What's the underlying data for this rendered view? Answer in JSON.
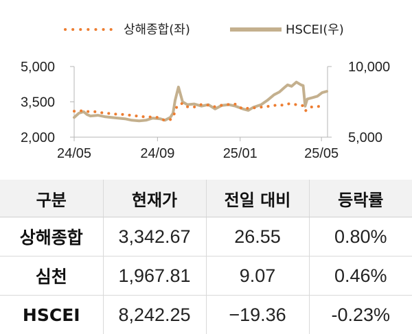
{
  "chart_data": {
    "type": "line",
    "legend": {
      "placement": "top-center",
      "items": [
        "상해종합(좌)",
        "HSCEI(우)"
      ]
    },
    "x_ticks": [
      "24/05",
      "24/09",
      "25/01",
      "25/05"
    ],
    "y_left": {
      "ticks": [
        "5,000",
        "3,500",
        "2,000"
      ],
      "range": [
        2000,
        5000
      ]
    },
    "y_right": {
      "ticks": [
        "10,000",
        "5,000"
      ],
      "range": [
        5000,
        10000
      ]
    },
    "grid": false,
    "series": [
      {
        "name": "상해종합(좌)",
        "axis": "left",
        "style": "dotted",
        "color": "#ed7d31",
        "x": [
          "2024-05-01",
          "2024-05-10",
          "2024-05-20",
          "2024-06-01",
          "2024-06-10",
          "2024-06-20",
          "2024-07-01",
          "2024-07-10",
          "2024-07-20",
          "2024-08-01",
          "2024-08-10",
          "2024-08-20",
          "2024-09-01",
          "2024-09-10",
          "2024-09-20",
          "2024-09-24",
          "2024-09-27",
          "2024-09-30",
          "2024-10-08",
          "2024-10-15",
          "2024-10-25",
          "2024-11-05",
          "2024-11-15",
          "2024-11-25",
          "2024-12-05",
          "2024-12-15",
          "2024-12-25",
          "2025-01-05",
          "2025-01-15",
          "2025-01-25",
          "2025-02-05",
          "2025-02-15",
          "2025-02-25",
          "2025-03-05",
          "2025-03-15",
          "2025-03-25",
          "2025-04-03",
          "2025-04-07",
          "2025-04-15",
          "2025-04-25",
          "2025-05-06"
        ],
        "y": [
          3105,
          3120,
          3090,
          3080,
          3040,
          3010,
          2980,
          2970,
          2940,
          2900,
          2870,
          2860,
          2840,
          2730,
          2750,
          2860,
          3090,
          3340,
          3440,
          3290,
          3280,
          3390,
          3360,
          3290,
          3360,
          3390,
          3400,
          3190,
          3240,
          3250,
          3290,
          3320,
          3370,
          3360,
          3420,
          3380,
          3340,
          3110,
          3280,
          3300,
          3342
        ]
      },
      {
        "name": "HSCEI(우)",
        "axis": "right",
        "style": "solid",
        "color": "#c4b08e",
        "x": [
          "2024-05-01",
          "2024-05-08",
          "2024-05-15",
          "2024-05-20",
          "2024-05-25",
          "2024-06-05",
          "2024-06-15",
          "2024-06-25",
          "2024-07-05",
          "2024-07-15",
          "2024-07-25",
          "2024-08-05",
          "2024-08-15",
          "2024-08-25",
          "2024-09-05",
          "2024-09-12",
          "2024-09-20",
          "2024-09-24",
          "2024-09-27",
          "2024-10-02",
          "2024-10-08",
          "2024-10-15",
          "2024-10-25",
          "2024-11-05",
          "2024-11-15",
          "2024-11-25",
          "2024-12-05",
          "2024-12-15",
          "2024-12-25",
          "2025-01-05",
          "2025-01-13",
          "2025-01-20",
          "2025-02-01",
          "2025-02-10",
          "2025-02-20",
          "2025-02-28",
          "2025-03-07",
          "2025-03-12",
          "2025-03-18",
          "2025-03-25",
          "2025-04-01",
          "2025-04-04",
          "2025-04-07",
          "2025-04-10",
          "2025-04-18",
          "2025-04-25",
          "2025-05-02",
          "2025-05-09"
        ],
        "y": [
          6400,
          6700,
          6800,
          6600,
          6500,
          6550,
          6450,
          6400,
          6350,
          6300,
          6200,
          6150,
          6200,
          6350,
          6300,
          6200,
          6400,
          6700,
          7600,
          8550,
          7500,
          7300,
          7350,
          7200,
          7300,
          7000,
          7250,
          7300,
          7200,
          7000,
          6900,
          7100,
          7300,
          7600,
          8000,
          8200,
          8500,
          8700,
          8600,
          8900,
          8700,
          8650,
          7200,
          7700,
          7800,
          7900,
          8150,
          8242
        ]
      }
    ]
  },
  "table": {
    "headers": [
      "구분",
      "현재가",
      "전일 대비",
      "등락률"
    ],
    "rows": [
      [
        "상해종합",
        "3,342.67",
        "26.55",
        "0.80%"
      ],
      [
        "심천",
        "1,967.81",
        "9.07",
        "0.46%"
      ],
      [
        "HSCEI",
        "8,242.25",
        "−19.36",
        "-0.23%"
      ]
    ]
  }
}
